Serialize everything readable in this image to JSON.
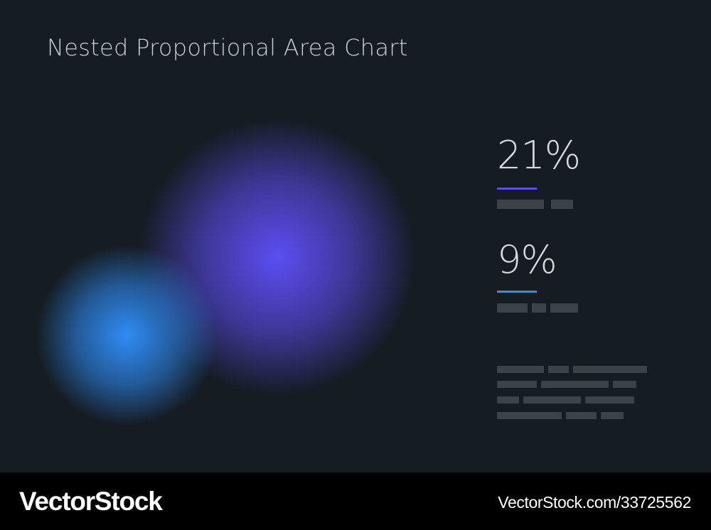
{
  "chart_data": {
    "type": "bubble",
    "title": "Nested Proportional Area Chart",
    "series": [
      {
        "value": 21,
        "label": "21%",
        "color": "#5b4ef2"
      },
      {
        "value": 9,
        "label": "9%",
        "color": "#2f8cf6"
      }
    ]
  },
  "footer": {
    "brand": "VectorStock",
    "image_id": "VectorStock.com/33725562"
  }
}
